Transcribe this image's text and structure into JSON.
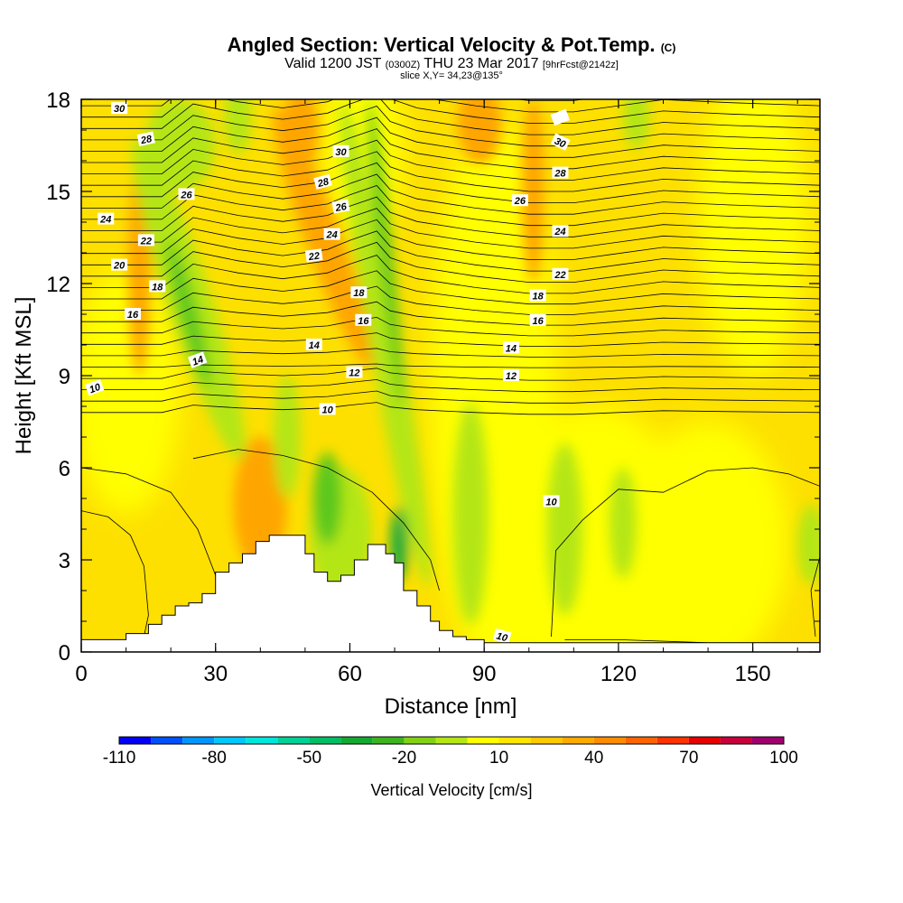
{
  "header": {
    "title": "Angled Section: Vertical Velocity & Pot.Temp.",
    "title_unit": "(C)",
    "valid_prefix": "Valid 1200 JST",
    "valid_utc": "(0300Z)",
    "valid_date": "THU 23 Mar 2017",
    "forecast": "[9hrFcst@2142z]",
    "slice": "slice X,Y= 34,23@135°"
  },
  "chart_data": {
    "type": "heatmap",
    "xlabel": "Distance [nm]",
    "ylabel": "Height [Kft MSL]",
    "xlim": [
      0,
      165
    ],
    "ylim": [
      0,
      18
    ],
    "x_ticks": [
      "0",
      "30",
      "60",
      "90",
      "120",
      "150"
    ],
    "y_ticks": [
      "0",
      "3",
      "6",
      "9",
      "12",
      "15",
      "18"
    ],
    "colorbar": {
      "title": "Vertical Velocity [cm/s]",
      "tick_labels": [
        "-110",
        "-80",
        "-50",
        "-20",
        "10",
        "40",
        "70",
        "100"
      ],
      "levels": [
        -110,
        -100,
        -90,
        -80,
        -70,
        -60,
        -50,
        -40,
        -30,
        -20,
        -10,
        0,
        10,
        20,
        30,
        40,
        50,
        60,
        70,
        80,
        90,
        100
      ],
      "colors": [
        "#0000f5",
        "#0050ff",
        "#0096ff",
        "#00c8ff",
        "#00e6dc",
        "#00d296",
        "#00be64",
        "#14aa32",
        "#3cb41e",
        "#82d214",
        "#b4e614",
        "#ffff00",
        "#ffe600",
        "#ffc800",
        "#ffaa00",
        "#ff8c00",
        "#ff6400",
        "#ff3200",
        "#e60000",
        "#c8003c",
        "#a0006e",
        "#6e00a0"
      ]
    },
    "field_colors": {
      "background": "#fde000",
      "weak_ascent": "#ffff00",
      "moderate_ascent": "#ffa500",
      "weak_descent": "#b4e614",
      "moderate_descent": "#5cc81e",
      "strong_descent": "#1eaa3c"
    },
    "pot_temp_contour_labels": [
      "10",
      "12",
      "14",
      "16",
      "18",
      "20",
      "22",
      "24",
      "26",
      "28",
      "30"
    ],
    "terrain_profile": {
      "x_nm": [
        0,
        10,
        15,
        18,
        21,
        24,
        27,
        30,
        33,
        36,
        39,
        42,
        45,
        48,
        50,
        52,
        55,
        58,
        61,
        64,
        66,
        68,
        70,
        72,
        75,
        78,
        80,
        83,
        86,
        90,
        95,
        100,
        165
      ],
      "height_kft": [
        0.4,
        0.6,
        0.9,
        1.2,
        1.5,
        1.6,
        1.9,
        2.6,
        2.9,
        3.2,
        3.6,
        3.8,
        3.8,
        3.8,
        3.2,
        2.6,
        2.3,
        2.5,
        3.0,
        3.5,
        3.5,
        3.2,
        2.9,
        2.0,
        1.5,
        1.0,
        0.7,
        0.5,
        0.4,
        0.3,
        0.3,
        0.3,
        0.3
      ]
    }
  }
}
